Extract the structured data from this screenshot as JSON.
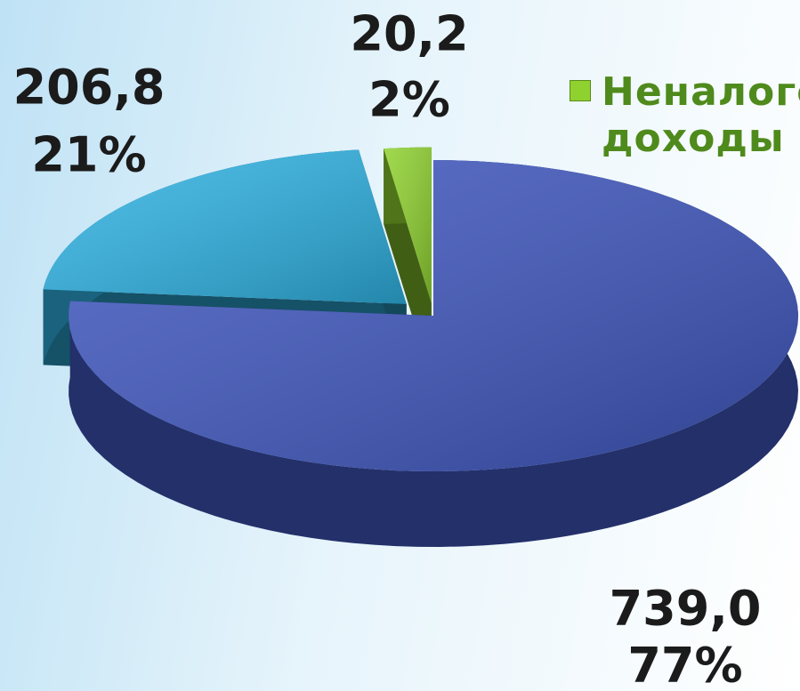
{
  "chart_data": {
    "type": "pie",
    "categories": [
      null,
      null,
      "Неналоговые доходы"
    ],
    "values": [
      739.0,
      206.8,
      20.2
    ],
    "value_labels": [
      "739,0",
      "206,8",
      "20,2"
    ],
    "percents": [
      77,
      21,
      2
    ],
    "percent_labels": [
      "77%",
      "21%",
      "2%"
    ],
    "colors": [
      "#3f57c0",
      "#2fb3e4",
      "#8fd22f"
    ],
    "legend": "top-right"
  }
}
